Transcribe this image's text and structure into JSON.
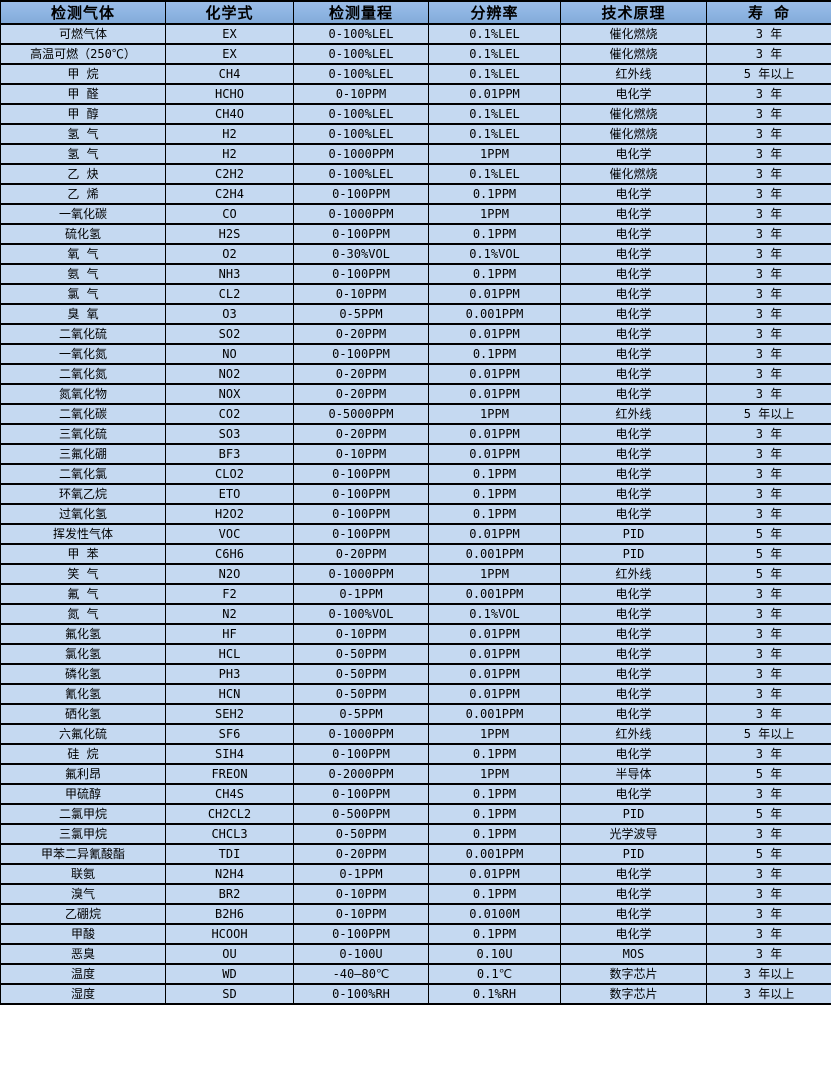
{
  "table": {
    "colors": {
      "header_bg": "#8db4e2",
      "row_bg": "#c5d9f1",
      "border": "#000000",
      "text": "#000000"
    },
    "columns": [
      "检测气体",
      "化学式",
      "检测量程",
      "分辨率",
      "技术原理",
      "寿 命"
    ],
    "rows": [
      [
        "可燃气体",
        "EX",
        "0-100%LEL",
        "0.1%LEL",
        "催化燃烧",
        "3 年"
      ],
      [
        "高温可燃（250℃）",
        "EX",
        "0-100%LEL",
        "0.1%LEL",
        "催化燃烧",
        "3 年"
      ],
      [
        "甲 烷",
        "CH4",
        "0-100%LEL",
        "0.1%LEL",
        "红外线",
        "5 年以上"
      ],
      [
        "甲 醛",
        "HCHO",
        "0-10PPM",
        "0.01PPM",
        "电化学",
        "3 年"
      ],
      [
        "甲 醇",
        "CH4O",
        "0-100%LEL",
        "0.1%LEL",
        "催化燃烧",
        "3 年"
      ],
      [
        "氢 气",
        "H2",
        "0-100%LEL",
        "0.1%LEL",
        "催化燃烧",
        "3 年"
      ],
      [
        "氢 气",
        "H2",
        "0-1000PPM",
        "1PPM",
        "电化学",
        "3 年"
      ],
      [
        "乙 炔",
        "C2H2",
        "0-100%LEL",
        "0.1%LEL",
        "催化燃烧",
        "3 年"
      ],
      [
        "乙 烯",
        "C2H4",
        "0-100PPM",
        "0.1PPM",
        "电化学",
        "3 年"
      ],
      [
        "一氧化碳",
        "CO",
        "0-1000PPM",
        "1PPM",
        "电化学",
        "3 年"
      ],
      [
        "硫化氢",
        "H2S",
        "0-100PPM",
        "0.1PPM",
        "电化学",
        "3 年"
      ],
      [
        "氧 气",
        "O2",
        "0-30%VOL",
        "0.1%VOL",
        "电化学",
        "3 年"
      ],
      [
        "氨 气",
        "NH3",
        "0-100PPM",
        "0.1PPM",
        "电化学",
        "3 年"
      ],
      [
        "氯 气",
        "CL2",
        "0-10PPM",
        "0.01PPM",
        "电化学",
        "3 年"
      ],
      [
        "臭 氧",
        "O3",
        "0-5PPM",
        "0.001PPM",
        "电化学",
        "3 年"
      ],
      [
        "二氧化硫",
        "SO2",
        "0-20PPM",
        "0.01PPM",
        "电化学",
        "3 年"
      ],
      [
        "一氧化氮",
        "NO",
        "0-100PPM",
        "0.1PPM",
        "电化学",
        "3 年"
      ],
      [
        "二氧化氮",
        "NO2",
        "0-20PPM",
        "0.01PPM",
        "电化学",
        "3 年"
      ],
      [
        "氮氧化物",
        "NOX",
        "0-20PPM",
        "0.01PPM",
        "电化学",
        "3 年"
      ],
      [
        "二氧化碳",
        "CO2",
        "0-5000PPM",
        "1PPM",
        "红外线",
        "5 年以上"
      ],
      [
        "三氧化硫",
        "SO3",
        "0-20PPM",
        "0.01PPM",
        "电化学",
        "3 年"
      ],
      [
        "三氟化硼",
        "BF3",
        "0-10PPM",
        "0.01PPM",
        "电化学",
        "3 年"
      ],
      [
        "二氧化氯",
        "CLO2",
        "0-100PPM",
        "0.1PPM",
        "电化学",
        "3 年"
      ],
      [
        "环氧乙烷",
        "ETO",
        "0-100PPM",
        "0.1PPM",
        "电化学",
        "3 年"
      ],
      [
        "过氧化氢",
        "H2O2",
        "0-100PPM",
        "0.1PPM",
        "电化学",
        "3 年"
      ],
      [
        "挥发性气体",
        "VOC",
        "0-100PPM",
        "0.01PPM",
        "PID",
        "5 年"
      ],
      [
        "甲 苯",
        "C6H6",
        "0-20PPM",
        "0.001PPM",
        "PID",
        "5 年"
      ],
      [
        "笑 气",
        "N2O",
        "0-1000PPM",
        "1PPM",
        "红外线",
        "5 年"
      ],
      [
        "氟 气",
        "F2",
        "0-1PPM",
        "0.001PPM",
        "电化学",
        "3 年"
      ],
      [
        "氮 气",
        "N2",
        "0-100%VOL",
        "0.1%VOL",
        "电化学",
        "3 年"
      ],
      [
        "氟化氢",
        "HF",
        "0-10PPM",
        "0.01PPM",
        "电化学",
        "3 年"
      ],
      [
        "氯化氢",
        "HCL",
        "0-50PPM",
        "0.01PPM",
        "电化学",
        "3 年"
      ],
      [
        "磷化氢",
        "PH3",
        "0-50PPM",
        "0.01PPM",
        "电化学",
        "3 年"
      ],
      [
        "氰化氢",
        "HCN",
        "0-50PPM",
        "0.01PPM",
        "电化学",
        "3 年"
      ],
      [
        "硒化氢",
        "SEH2",
        "0-5PPM",
        "0.001PPM",
        "电化学",
        "3 年"
      ],
      [
        "六氟化硫",
        "SF6",
        "0-1000PPM",
        "1PPM",
        "红外线",
        "5 年以上"
      ],
      [
        "硅 烷",
        "SIH4",
        "0-100PPM",
        "0.1PPM",
        "电化学",
        "3 年"
      ],
      [
        "氟利昂",
        "FREON",
        "0-2000PPM",
        "1PPM",
        "半导体",
        "5 年"
      ],
      [
        "甲硫醇",
        "CH4S",
        "0-100PPM",
        "0.1PPM",
        "电化学",
        "3 年"
      ],
      [
        "二氯甲烷",
        "CH2CL2",
        "0-500PPM",
        "0.1PPM",
        "PID",
        "5 年"
      ],
      [
        "三氯甲烷",
        "CHCL3",
        "0-50PPM",
        "0.1PPM",
        "光学波导",
        "3 年"
      ],
      [
        "甲苯二异氰酸酯",
        "TDI",
        "0-20PPM",
        "0.001PPM",
        "PID",
        "5 年"
      ],
      [
        "联氨",
        "N2H4",
        "0-1PPM",
        "0.01PPM",
        "电化学",
        "3 年"
      ],
      [
        "溴气",
        "BR2",
        "0-10PPM",
        "0.1PPM",
        "电化学",
        "3 年"
      ],
      [
        "乙硼烷",
        "B2H6",
        "0-10PPM",
        "0.0100M",
        "电化学",
        "3 年"
      ],
      [
        "甲酸",
        "HCOOH",
        "0-100PPM",
        "0.1PPM",
        "电化学",
        "3 年"
      ],
      [
        "恶臭",
        "OU",
        "0-100U",
        "0.10U",
        "MOS",
        "3 年"
      ],
      [
        "温度",
        "WD",
        "-40—80℃",
        "0.1℃",
        "数字芯片",
        "3 年以上"
      ],
      [
        "湿度",
        "SD",
        "0-100%RH",
        "0.1%RH",
        "数字芯片",
        "3 年以上"
      ]
    ]
  }
}
